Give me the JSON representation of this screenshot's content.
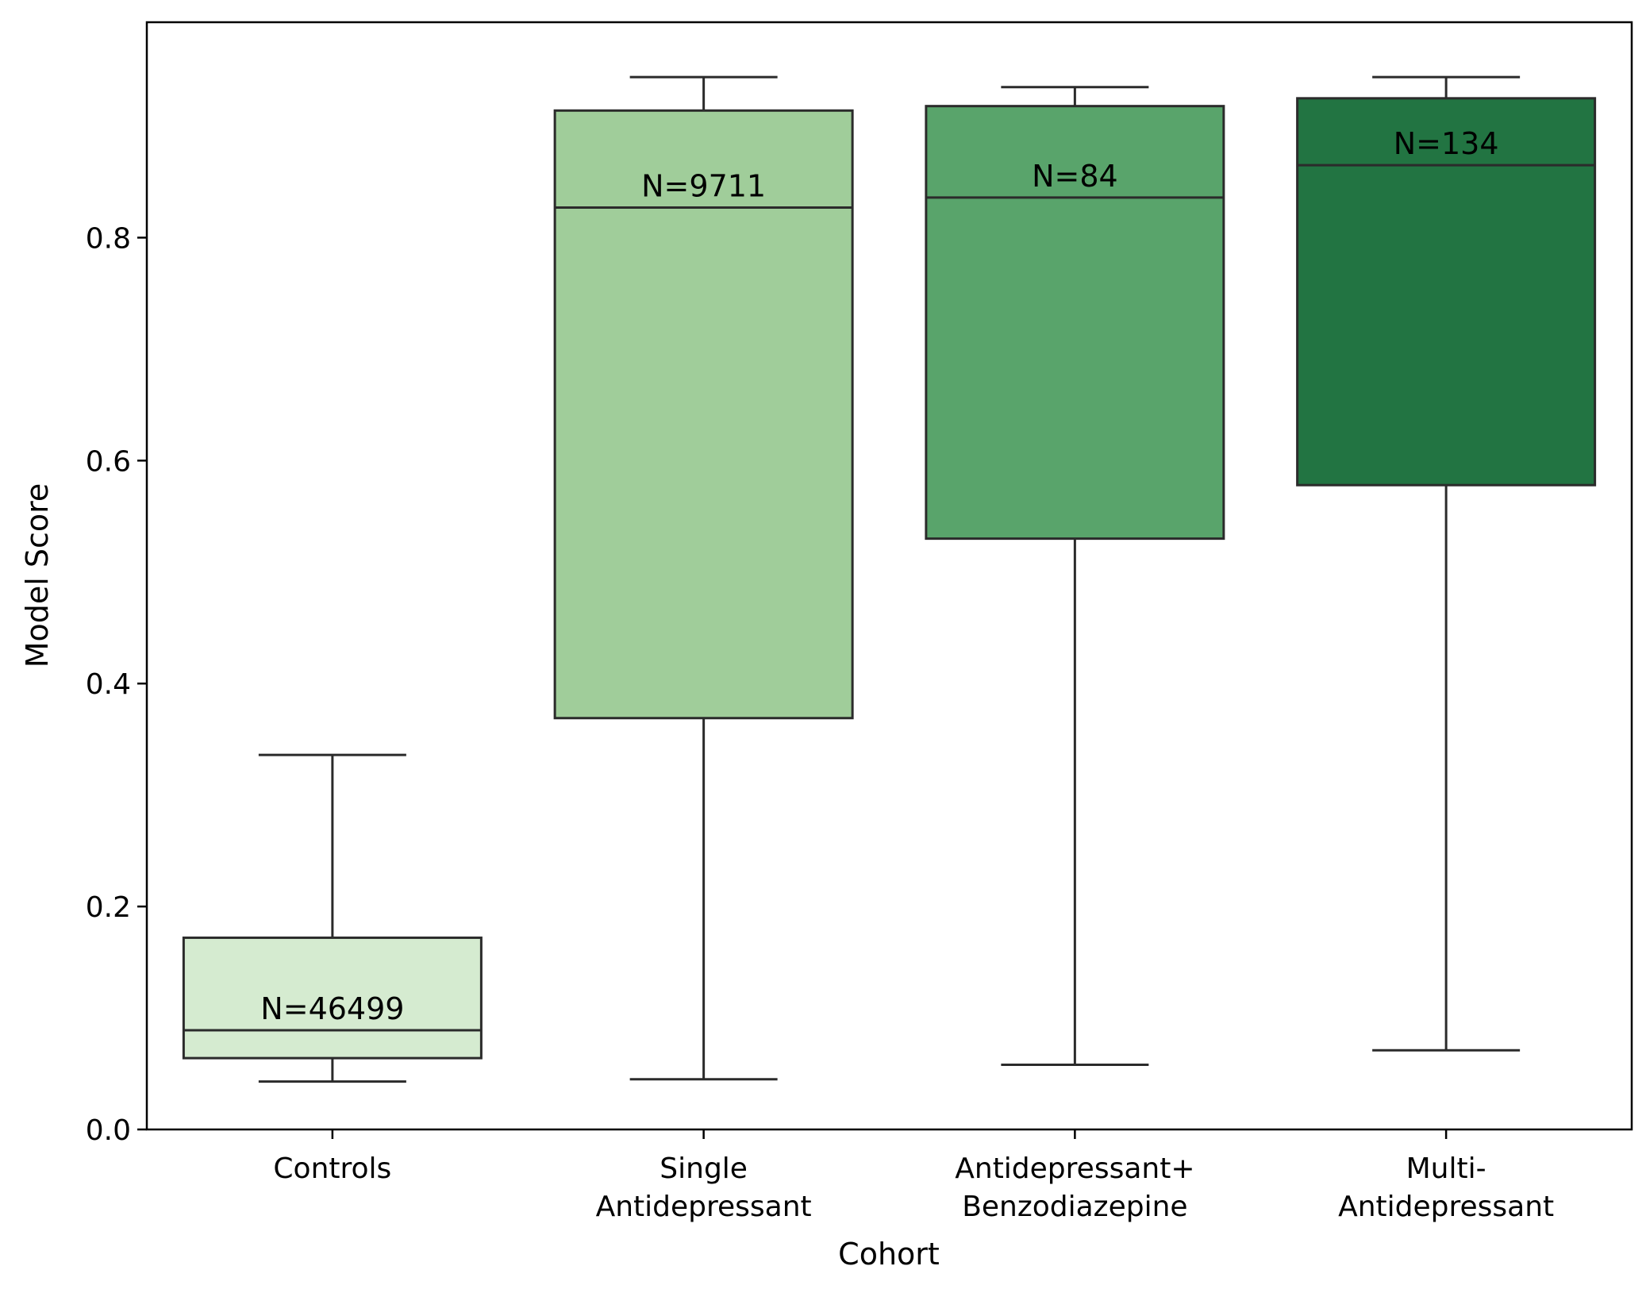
{
  "chart_data": {
    "type": "box",
    "xlabel": "Cohort",
    "ylabel": "Model Score",
    "ylim": [
      0.0,
      0.98
    ],
    "yticks": [
      0.0,
      0.2,
      0.4,
      0.6,
      0.8
    ],
    "ytick_labels": [
      "0.0",
      "0.2",
      "0.4",
      "0.6",
      "0.8"
    ],
    "grid": false,
    "categories": [
      [
        "Controls"
      ],
      [
        "Single",
        "Antidepressant"
      ],
      [
        "Antidepressant+",
        "Benzodiazepine"
      ],
      [
        "Multi-",
        "Antidepressant"
      ]
    ],
    "boxes": [
      {
        "whisker_low": 0.043,
        "q1": 0.064,
        "median": 0.089,
        "q3": 0.172,
        "whisker_high": 0.336,
        "n_label": "N=46499",
        "color": "#d5ebd0"
      },
      {
        "whisker_low": 0.045,
        "q1": 0.369,
        "median": 0.827,
        "q3": 0.914,
        "whisker_high": 0.944,
        "n_label": "N=9711",
        "color": "#a0cd9a"
      },
      {
        "whisker_low": 0.058,
        "q1": 0.53,
        "median": 0.836,
        "q3": 0.918,
        "whisker_high": 0.935,
        "n_label": "N=84",
        "color": "#59a46b"
      },
      {
        "whisker_low": 0.071,
        "q1": 0.578,
        "median": 0.865,
        "q3": 0.925,
        "whisker_high": 0.944,
        "n_label": "N=134",
        "color": "#227442"
      }
    ]
  }
}
